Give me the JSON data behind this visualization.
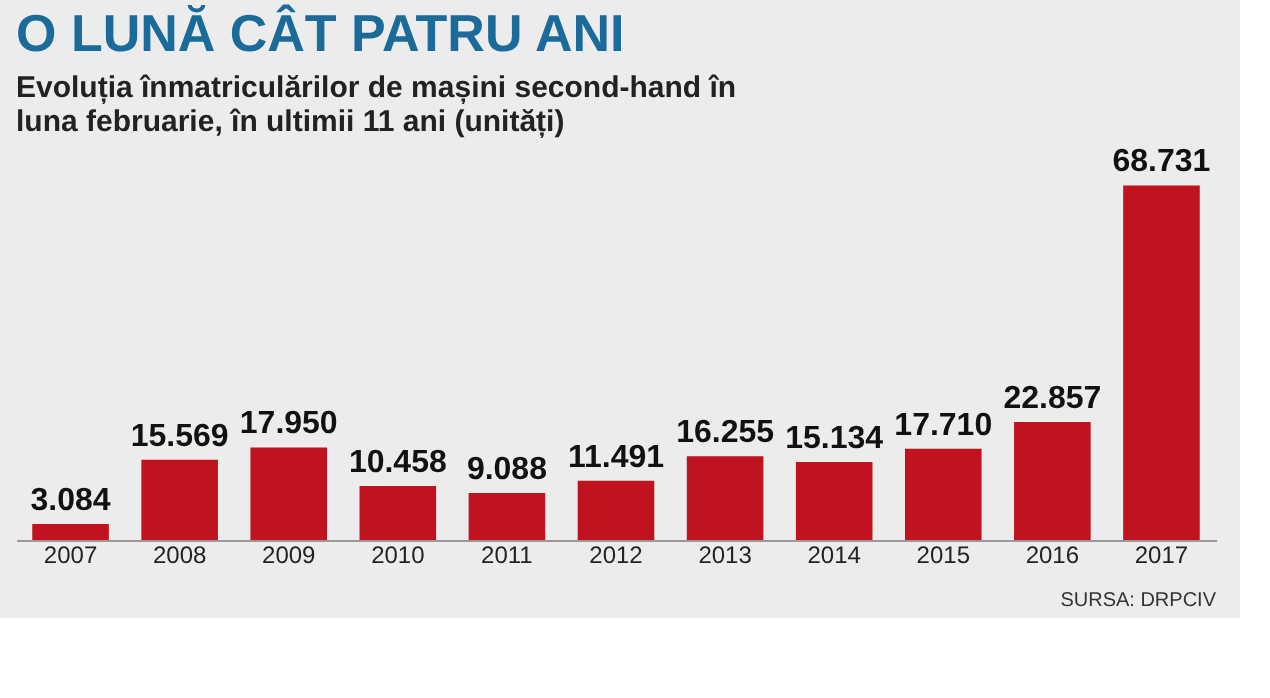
{
  "chart_data": {
    "type": "bar",
    "title": "O LUNĂ CÂT PATRU ANI",
    "subtitle": [
      "Evoluția înmatriculărilor de mașini second-hand în",
      "luna februarie, în ultimii 11 ani (unități)"
    ],
    "categories": [
      "2007",
      "2008",
      "2009",
      "2010",
      "2011",
      "2012",
      "2013",
      "2014",
      "2015",
      "2016",
      "2017"
    ],
    "values": [
      3084,
      15569,
      17950,
      10458,
      9088,
      11491,
      16255,
      15134,
      17710,
      22857,
      68731
    ],
    "value_labels": [
      "3.084",
      "15.569",
      "17.950",
      "10.458",
      "9.088",
      "11.491",
      "16.255",
      "15.134",
      "17.710",
      "22.857",
      "68.731"
    ],
    "color": "#c1121f",
    "annotations": [
      "SURSA: DRPCIV"
    ]
  }
}
